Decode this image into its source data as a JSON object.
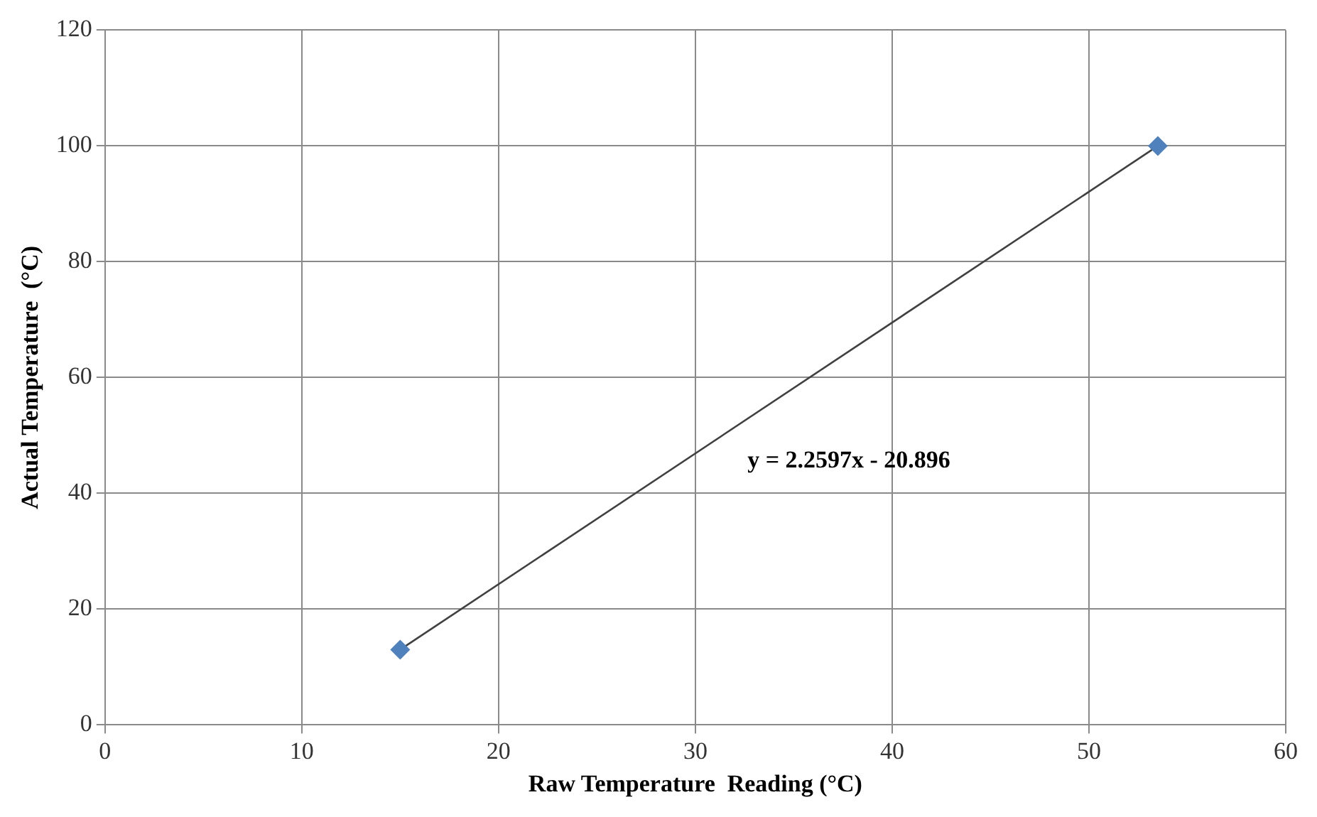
{
  "chart_data": {
    "type": "scatter",
    "xlabel": "Raw Temperature  Reading (°C)",
    "ylabel": "Actual Temperature  (°C)",
    "x": [
      15,
      53.5
    ],
    "series": [
      {
        "type": "scatter",
        "color": "#4f81bd",
        "marker": "diamond",
        "values": [
          13,
          100
        ]
      },
      {
        "type": "line",
        "color": "#404040",
        "marker": "none",
        "values": [
          13,
          100
        ]
      }
    ],
    "annotations": [
      "y = 2.2597x - 20.896"
    ],
    "xlim": [
      0,
      60
    ],
    "xticks": [
      0,
      10,
      20,
      30,
      40,
      50,
      60
    ],
    "ylim": [
      0,
      120
    ],
    "yticks": [
      0,
      20,
      40,
      60,
      80,
      100,
      120
    ],
    "grid": true,
    "legend": false
  }
}
